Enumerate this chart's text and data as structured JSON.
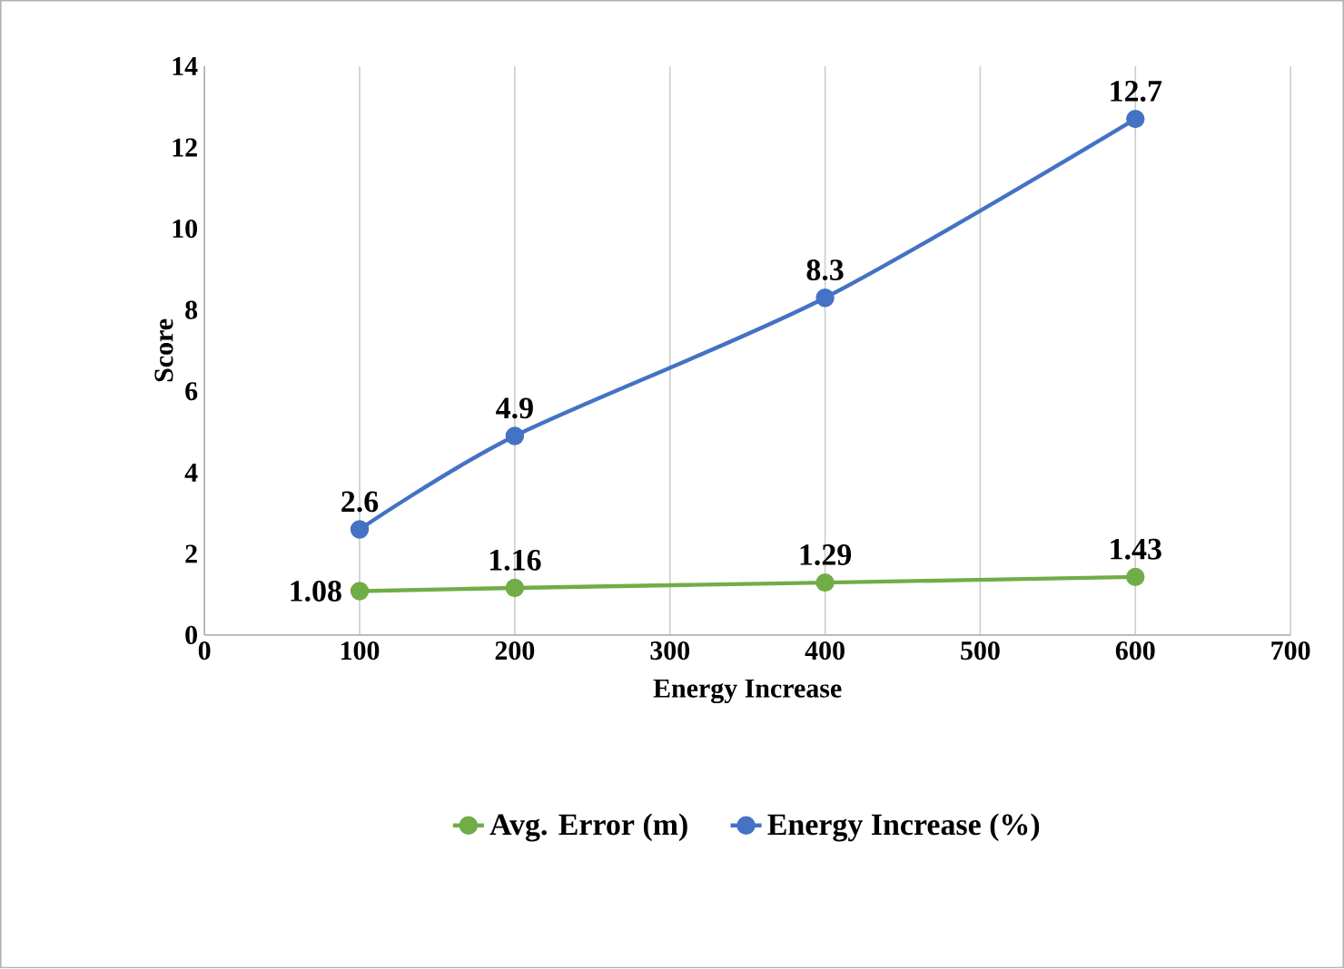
{
  "chart_data": {
    "type": "line",
    "xlabel": "Energy Increase",
    "ylabel": "Score",
    "x": [
      100,
      200,
      400,
      600
    ],
    "series": [
      {
        "name": "Avg. Error (m)",
        "color": "#70ad47",
        "values": [
          1.08,
          1.16,
          1.29,
          1.43
        ]
      },
      {
        "name": "Energy Increase (%)",
        "color": "#4472c4",
        "values": [
          2.6,
          4.9,
          8.3,
          12.7
        ]
      }
    ],
    "xlim": [
      0,
      700
    ],
    "xticks": [
      0,
      100,
      200,
      300,
      400,
      500,
      600,
      700
    ],
    "ylim": [
      0,
      14
    ],
    "yticks": [
      0,
      2,
      4,
      6,
      8,
      10,
      12,
      14
    ],
    "grid": "x",
    "legend": "bottom",
    "marker": "circle",
    "line_style": "solid",
    "data_labels": true
  }
}
